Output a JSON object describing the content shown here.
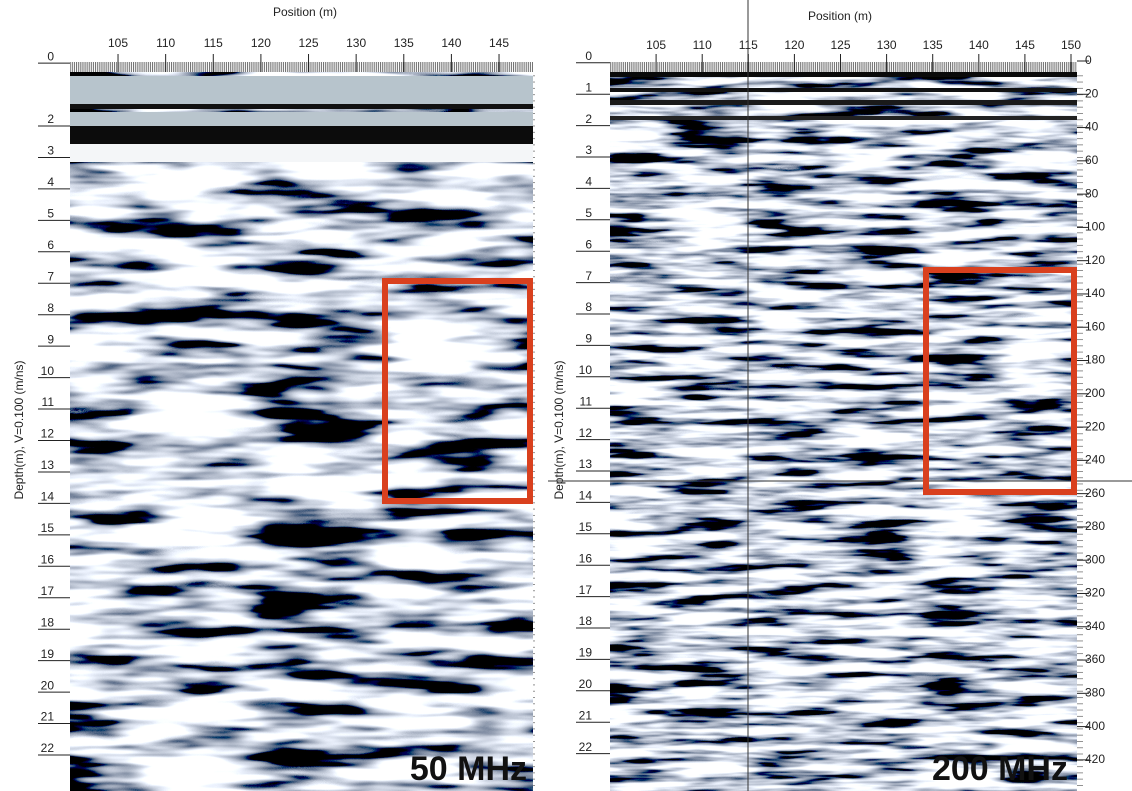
{
  "panels": [
    {
      "x_axis_label": "Position (m)",
      "x_ticks": [
        105,
        110,
        115,
        120,
        125,
        130,
        135,
        140,
        145
      ],
      "y_axis_label": "Depth(m), V=0.100 (m/ns)",
      "y_ticks": [
        0,
        2,
        3,
        4,
        5,
        6,
        7,
        8,
        9,
        10,
        11,
        12,
        13,
        14,
        15,
        16,
        17,
        18,
        19,
        20,
        21,
        22
      ],
      "frequency_label": "50 MHz"
    },
    {
      "x_axis_label": "Position (m)",
      "x_ticks": [
        105,
        110,
        115,
        120,
        125,
        130,
        135,
        140,
        145,
        150
      ],
      "y_axis_label": "Depth(m), V=0.100 (m/ns)",
      "y_ticks": [
        0,
        1,
        2,
        3,
        4,
        5,
        6,
        7,
        8,
        9,
        10,
        11,
        12,
        13,
        14,
        15,
        16,
        17,
        18,
        19,
        20,
        21,
        22
      ],
      "time_ticks": [
        0,
        20,
        40,
        60,
        80,
        100,
        120,
        140,
        160,
        180,
        200,
        220,
        240,
        260,
        280,
        300,
        320,
        340,
        360,
        380,
        400,
        420
      ],
      "frequency_label": "200 MHz"
    }
  ]
}
